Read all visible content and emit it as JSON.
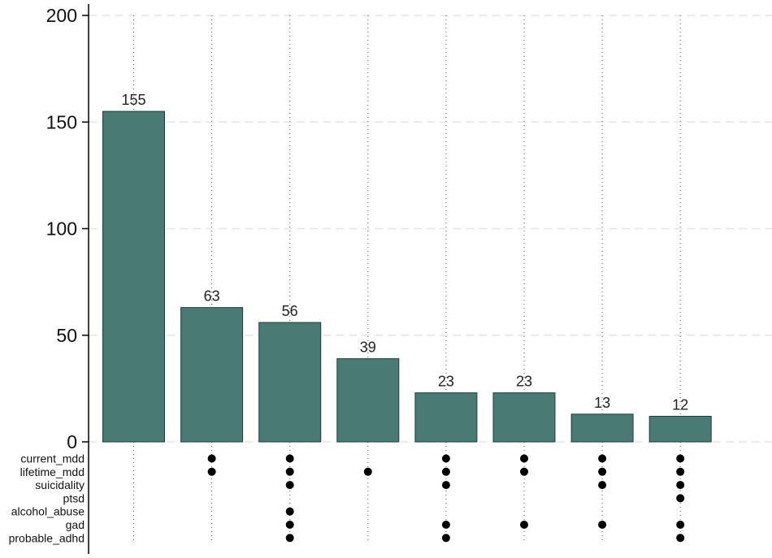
{
  "chart_data": {
    "type": "bar",
    "variant": "upset",
    "title": "",
    "xlabel": "",
    "ylabel": "",
    "ylim": [
      0,
      200
    ],
    "yticks": [
      0,
      50,
      100,
      150,
      200
    ],
    "grid": "horizontal dashed",
    "bar_color": "#4a7a74",
    "bar_edge_color": "#1f3f3a",
    "sets": [
      "current_mdd",
      "lifetime_mdd",
      "suicidality",
      "ptsd",
      "alcohol_abuse",
      "gad",
      "probable_adhd"
    ],
    "values": [
      155,
      63,
      56,
      39,
      23,
      23,
      13,
      12
    ],
    "data_labels": [
      "155",
      "63",
      "56",
      "39",
      "23",
      "23",
      "13",
      "12"
    ],
    "intersections": [
      [],
      [
        "current_mdd",
        "lifetime_mdd"
      ],
      [
        "current_mdd",
        "lifetime_mdd",
        "suicidality",
        "alcohol_abuse",
        "gad",
        "probable_adhd"
      ],
      [
        "lifetime_mdd"
      ],
      [
        "current_mdd",
        "lifetime_mdd",
        "suicidality",
        "gad",
        "probable_adhd"
      ],
      [
        "current_mdd",
        "lifetime_mdd",
        "gad"
      ],
      [
        "current_mdd",
        "lifetime_mdd",
        "suicidality",
        "gad"
      ],
      [
        "current_mdd",
        "lifetime_mdd",
        "suicidality",
        "ptsd",
        "gad",
        "probable_adhd"
      ]
    ]
  }
}
